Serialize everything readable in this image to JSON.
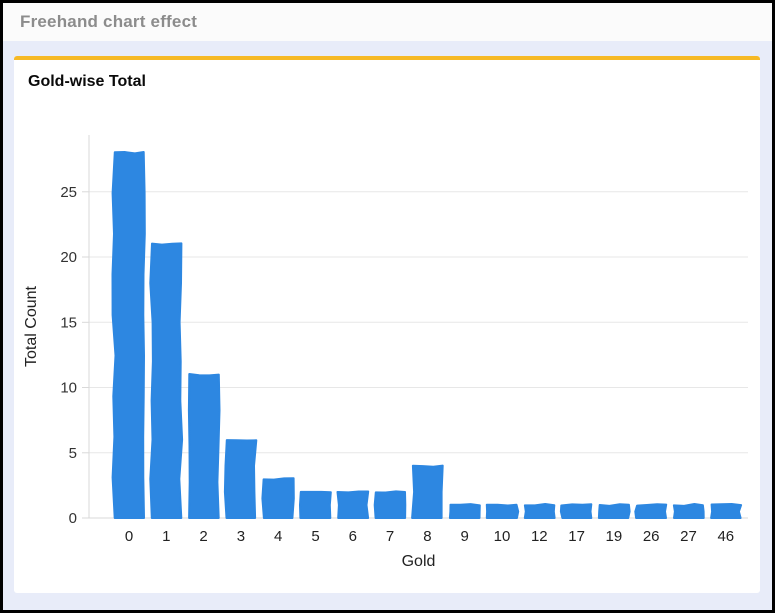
{
  "header": {
    "title": "Freehand chart effect"
  },
  "chart_data": {
    "type": "bar",
    "title": "Gold-wise Total",
    "categories": [
      "0",
      "1",
      "2",
      "3",
      "4",
      "5",
      "6",
      "7",
      "8",
      "9",
      "10",
      "12",
      "17",
      "19",
      "26",
      "27",
      "46"
    ],
    "values": [
      28,
      21,
      11,
      6,
      3,
      2,
      2,
      2,
      4,
      1,
      1,
      1,
      1,
      1,
      1,
      1,
      1
    ],
    "xlabel": "Gold",
    "ylabel": "Total Count",
    "yticks": [
      0,
      5,
      10,
      15,
      20,
      25
    ],
    "ylim": [
      0,
      29.35
    ],
    "grid": true,
    "legend": false,
    "style": "freehand",
    "bar_color": "#2D87E1"
  },
  "colors": {
    "frame_border": "#000000",
    "page_background": "#E8ECF9",
    "header_background": "#FBFBFB",
    "header_text": "#8C8C8C",
    "card_background": "#FFFFFF",
    "accent_orange": "#F6B926",
    "bar_blue": "#2D87E1",
    "grid_line": "#E7E7E7",
    "axis_line": "#D9D9D9",
    "tick_label": "#333333",
    "axis_label": "#222222"
  }
}
